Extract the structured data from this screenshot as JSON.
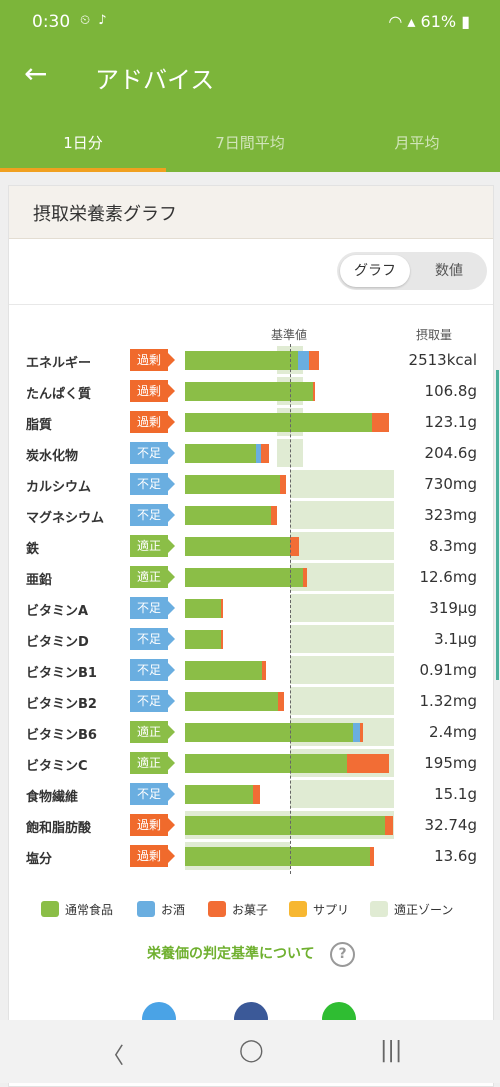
{
  "status": {
    "time": "0:30",
    "icons": "⏲ ♪",
    "battery": "61%",
    "signal": "WiFi"
  },
  "appbar": {
    "title": "アドバイス"
  },
  "tabs": [
    {
      "label": "1日分"
    },
    {
      "label": "7日間平均"
    },
    {
      "label": "月平均"
    }
  ],
  "card": {
    "title": "摂取栄養素グラフ"
  },
  "toggle": {
    "graph_label": "グラフ",
    "numbers_label": "数値"
  },
  "columns": {
    "reference": "基準値",
    "intake": "摂取量"
  },
  "colors": {
    "food": "#8bbe47",
    "alcohol": "#6aaee0",
    "snack": "#f26d35",
    "supplement": "#f7b731",
    "zone": "#e0ebd3",
    "over": "#f06a2c",
    "under": "#6aaee0",
    "ok": "#8bbe47"
  },
  "chart_data": {
    "type": "bar",
    "title": "摂取栄養素グラフ",
    "reference_label": "基準値",
    "legend": [
      "通常食品",
      "お酒",
      "お菓子",
      "サプリ",
      "適正ゾーン"
    ],
    "rows": [
      {
        "name": "エネルギー",
        "status": "過剰",
        "status_type": "over",
        "value": "2513kcal",
        "food": 1.08,
        "alcohol": 0.1,
        "snack": 0.1,
        "supplement": 0,
        "zone": [
          0.88,
          1.12
        ]
      },
      {
        "name": "たんぱく質",
        "status": "過剰",
        "status_type": "over",
        "value": "106.8g",
        "food": 1.22,
        "alcohol": 0,
        "snack": 0.02,
        "supplement": 0,
        "zone": [
          0.88,
          1.12
        ]
      },
      {
        "name": "脂質",
        "status": "過剰",
        "status_type": "over",
        "value": "123.1g",
        "food": 1.78,
        "alcohol": 0,
        "snack": 0.16,
        "supplement": 0,
        "zone": [
          0.88,
          1.12
        ]
      },
      {
        "name": "炭水化物",
        "status": "不足",
        "status_type": "under",
        "value": "204.6g",
        "food": 0.68,
        "alcohol": 0.04,
        "snack": 0.08,
        "supplement": 0,
        "zone": [
          0.88,
          1.12
        ]
      },
      {
        "name": "カルシウム",
        "status": "不足",
        "status_type": "under",
        "value": "730mg",
        "food": 0.9,
        "alcohol": 0,
        "snack": 0.06,
        "supplement": 0,
        "zone": [
          1.0,
          1.99
        ]
      },
      {
        "name": "マグネシウム",
        "status": "不足",
        "status_type": "under",
        "value": "323mg",
        "food": 0.82,
        "alcohol": 0,
        "snack": 0.06,
        "supplement": 0,
        "zone": [
          1.0,
          1.99
        ]
      },
      {
        "name": "鉄",
        "status": "適正",
        "status_type": "ok",
        "value": "8.3mg",
        "food": 1.0,
        "alcohol": 0,
        "snack": 0.09,
        "supplement": 0,
        "zone": [
          1.0,
          1.99
        ]
      },
      {
        "name": "亜鉛",
        "status": "適正",
        "status_type": "ok",
        "value": "12.6mg",
        "food": 1.12,
        "alcohol": 0,
        "snack": 0.04,
        "supplement": 0,
        "zone": [
          1.0,
          1.99
        ]
      },
      {
        "name": "ビタミンA",
        "status": "不足",
        "status_type": "under",
        "value": "319μg",
        "food": 0.34,
        "alcohol": 0,
        "snack": 0.02,
        "supplement": 0,
        "zone": [
          1.0,
          1.99
        ]
      },
      {
        "name": "ビタミンD",
        "status": "不足",
        "status_type": "under",
        "value": "3.1μg",
        "food": 0.34,
        "alcohol": 0,
        "snack": 0.02,
        "supplement": 0,
        "zone": [
          1.0,
          1.99
        ]
      },
      {
        "name": "ビタミンB1",
        "status": "不足",
        "status_type": "under",
        "value": "0.91mg",
        "food": 0.73,
        "alcohol": 0,
        "snack": 0.04,
        "supplement": 0,
        "zone": [
          1.0,
          1.99
        ]
      },
      {
        "name": "ビタミンB2",
        "status": "不足",
        "status_type": "under",
        "value": "1.32mg",
        "food": 0.89,
        "alcohol": 0,
        "snack": 0.05,
        "supplement": 0,
        "zone": [
          1.0,
          1.99
        ]
      },
      {
        "name": "ビタミンB6",
        "status": "適正",
        "status_type": "ok",
        "value": "2.4mg",
        "food": 1.6,
        "alcohol": 0.07,
        "snack": 0.03,
        "supplement": 0,
        "zone": [
          1.0,
          1.99
        ]
      },
      {
        "name": "ビタミンC",
        "status": "適正",
        "status_type": "ok",
        "value": "195mg",
        "food": 1.54,
        "alcohol": 0,
        "snack": 0.4,
        "supplement": 0,
        "zone": [
          1.0,
          1.99
        ]
      },
      {
        "name": "食物繊維",
        "status": "不足",
        "status_type": "under",
        "value": "15.1g",
        "food": 0.65,
        "alcohol": 0,
        "snack": 0.06,
        "supplement": 0,
        "zone": [
          1.0,
          1.99
        ]
      },
      {
        "name": "飽和脂肪酸",
        "status": "過剰",
        "status_type": "over",
        "value": "32.74g",
        "food": 1.9,
        "alcohol": 0,
        "snack": 0.08,
        "supplement": 0,
        "zone": [
          0,
          1.99
        ]
      },
      {
        "name": "塩分",
        "status": "過剰",
        "status_type": "over",
        "value": "13.6g",
        "food": 1.76,
        "alcohol": 0,
        "snack": 0.04,
        "supplement": 0,
        "zone": [
          0,
          1.0
        ]
      }
    ]
  },
  "legend": [
    {
      "label": "通常食品",
      "color": "#8bbe47"
    },
    {
      "label": "お酒",
      "color": "#6aaee0"
    },
    {
      "label": "お菓子",
      "color": "#f26d35"
    },
    {
      "label": "サプリ",
      "color": "#f7b731"
    },
    {
      "label": "適正ゾーン",
      "color": "#e0ebd3"
    }
  ],
  "criteria_link": "栄養価の判定基準について",
  "share": [
    {
      "name": "twitter",
      "color": "#4aa3e6"
    },
    {
      "name": "facebook",
      "color": "#3b5998"
    },
    {
      "name": "line",
      "color": "#2fbd32"
    }
  ],
  "navbar": {
    "back": "〈",
    "home": "◯",
    "recents": "|||"
  }
}
